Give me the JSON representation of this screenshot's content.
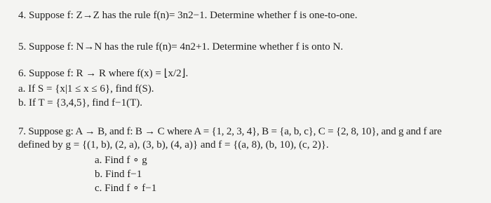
{
  "problems": [
    {
      "text": "4. Suppose f: Z→Z has the rule f(n)= 3n2−1. Determine whether f is one-to-one."
    },
    {
      "text": "5. Suppose f: N→N has the rule f(n)= 4n2+1. Determine whether f is onto N."
    },
    {
      "text": "6. Suppose f: R → R where f(x) = ⌊x/2⌋.",
      "parts": [
        "a. If S = {x|1 ≤ x ≤ 6}, find f(S).",
        "b. If T = {3,4,5}, find f−1(T)."
      ]
    },
    {
      "text": "7. Suppose g: A → B, and f: B → C where A = {1, 2, 3, 4}, B = {a, b, c}, C = {2, 8, 10}, and g and f are",
      "text2": "defined by g = {(1, b), (2, a), (3, b), (4, a)} and f = {(a, 8), (b, 10), (c, 2)}.",
      "parts": [
        "a. Find f ∘ g",
        "b. Find f−1",
        "c. Find f ∘ f−1"
      ]
    }
  ]
}
